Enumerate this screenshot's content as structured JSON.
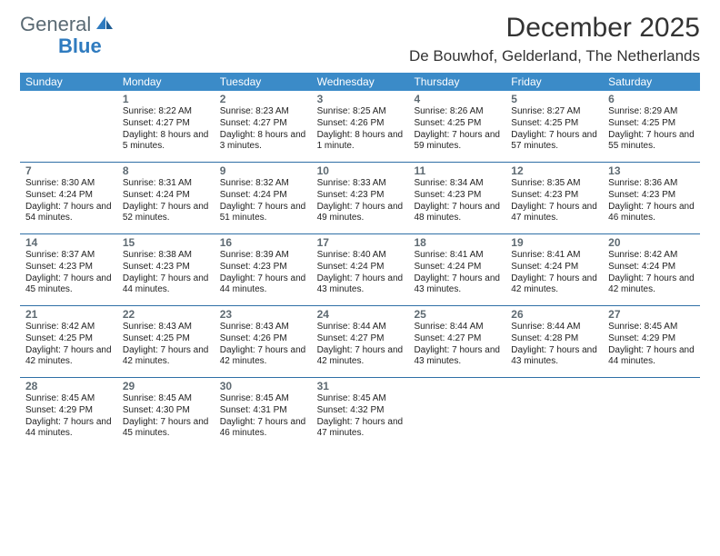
{
  "logo": {
    "text1": "General",
    "text2": "Blue"
  },
  "title": "December 2025",
  "location": "De Bouwhof, Gelderland, The Netherlands",
  "weekdays": [
    "Sunday",
    "Monday",
    "Tuesday",
    "Wednesday",
    "Thursday",
    "Friday",
    "Saturday"
  ],
  "colors": {
    "header_bg": "#3b8bc8",
    "header_text": "#ffffff",
    "rule": "#2f6fa6",
    "body_text": "#222222",
    "daynum": "#5e6a72",
    "logo_gray": "#5a6a74",
    "logo_blue": "#2f7bbf"
  },
  "days": [
    {
      "n": "",
      "sr": "",
      "ss": "",
      "dl": ""
    },
    {
      "n": "1",
      "sr": "Sunrise: 8:22 AM",
      "ss": "Sunset: 4:27 PM",
      "dl": "Daylight: 8 hours and 5 minutes."
    },
    {
      "n": "2",
      "sr": "Sunrise: 8:23 AM",
      "ss": "Sunset: 4:27 PM",
      "dl": "Daylight: 8 hours and 3 minutes."
    },
    {
      "n": "3",
      "sr": "Sunrise: 8:25 AM",
      "ss": "Sunset: 4:26 PM",
      "dl": "Daylight: 8 hours and 1 minute."
    },
    {
      "n": "4",
      "sr": "Sunrise: 8:26 AM",
      "ss": "Sunset: 4:25 PM",
      "dl": "Daylight: 7 hours and 59 minutes."
    },
    {
      "n": "5",
      "sr": "Sunrise: 8:27 AM",
      "ss": "Sunset: 4:25 PM",
      "dl": "Daylight: 7 hours and 57 minutes."
    },
    {
      "n": "6",
      "sr": "Sunrise: 8:29 AM",
      "ss": "Sunset: 4:25 PM",
      "dl": "Daylight: 7 hours and 55 minutes."
    },
    {
      "n": "7",
      "sr": "Sunrise: 8:30 AM",
      "ss": "Sunset: 4:24 PM",
      "dl": "Daylight: 7 hours and 54 minutes."
    },
    {
      "n": "8",
      "sr": "Sunrise: 8:31 AM",
      "ss": "Sunset: 4:24 PM",
      "dl": "Daylight: 7 hours and 52 minutes."
    },
    {
      "n": "9",
      "sr": "Sunrise: 8:32 AM",
      "ss": "Sunset: 4:24 PM",
      "dl": "Daylight: 7 hours and 51 minutes."
    },
    {
      "n": "10",
      "sr": "Sunrise: 8:33 AM",
      "ss": "Sunset: 4:23 PM",
      "dl": "Daylight: 7 hours and 49 minutes."
    },
    {
      "n": "11",
      "sr": "Sunrise: 8:34 AM",
      "ss": "Sunset: 4:23 PM",
      "dl": "Daylight: 7 hours and 48 minutes."
    },
    {
      "n": "12",
      "sr": "Sunrise: 8:35 AM",
      "ss": "Sunset: 4:23 PM",
      "dl": "Daylight: 7 hours and 47 minutes."
    },
    {
      "n": "13",
      "sr": "Sunrise: 8:36 AM",
      "ss": "Sunset: 4:23 PM",
      "dl": "Daylight: 7 hours and 46 minutes."
    },
    {
      "n": "14",
      "sr": "Sunrise: 8:37 AM",
      "ss": "Sunset: 4:23 PM",
      "dl": "Daylight: 7 hours and 45 minutes."
    },
    {
      "n": "15",
      "sr": "Sunrise: 8:38 AM",
      "ss": "Sunset: 4:23 PM",
      "dl": "Daylight: 7 hours and 44 minutes."
    },
    {
      "n": "16",
      "sr": "Sunrise: 8:39 AM",
      "ss": "Sunset: 4:23 PM",
      "dl": "Daylight: 7 hours and 44 minutes."
    },
    {
      "n": "17",
      "sr": "Sunrise: 8:40 AM",
      "ss": "Sunset: 4:24 PM",
      "dl": "Daylight: 7 hours and 43 minutes."
    },
    {
      "n": "18",
      "sr": "Sunrise: 8:41 AM",
      "ss": "Sunset: 4:24 PM",
      "dl": "Daylight: 7 hours and 43 minutes."
    },
    {
      "n": "19",
      "sr": "Sunrise: 8:41 AM",
      "ss": "Sunset: 4:24 PM",
      "dl": "Daylight: 7 hours and 42 minutes."
    },
    {
      "n": "20",
      "sr": "Sunrise: 8:42 AM",
      "ss": "Sunset: 4:24 PM",
      "dl": "Daylight: 7 hours and 42 minutes."
    },
    {
      "n": "21",
      "sr": "Sunrise: 8:42 AM",
      "ss": "Sunset: 4:25 PM",
      "dl": "Daylight: 7 hours and 42 minutes."
    },
    {
      "n": "22",
      "sr": "Sunrise: 8:43 AM",
      "ss": "Sunset: 4:25 PM",
      "dl": "Daylight: 7 hours and 42 minutes."
    },
    {
      "n": "23",
      "sr": "Sunrise: 8:43 AM",
      "ss": "Sunset: 4:26 PM",
      "dl": "Daylight: 7 hours and 42 minutes."
    },
    {
      "n": "24",
      "sr": "Sunrise: 8:44 AM",
      "ss": "Sunset: 4:27 PM",
      "dl": "Daylight: 7 hours and 42 minutes."
    },
    {
      "n": "25",
      "sr": "Sunrise: 8:44 AM",
      "ss": "Sunset: 4:27 PM",
      "dl": "Daylight: 7 hours and 43 minutes."
    },
    {
      "n": "26",
      "sr": "Sunrise: 8:44 AM",
      "ss": "Sunset: 4:28 PM",
      "dl": "Daylight: 7 hours and 43 minutes."
    },
    {
      "n": "27",
      "sr": "Sunrise: 8:45 AM",
      "ss": "Sunset: 4:29 PM",
      "dl": "Daylight: 7 hours and 44 minutes."
    },
    {
      "n": "28",
      "sr": "Sunrise: 8:45 AM",
      "ss": "Sunset: 4:29 PM",
      "dl": "Daylight: 7 hours and 44 minutes."
    },
    {
      "n": "29",
      "sr": "Sunrise: 8:45 AM",
      "ss": "Sunset: 4:30 PM",
      "dl": "Daylight: 7 hours and 45 minutes."
    },
    {
      "n": "30",
      "sr": "Sunrise: 8:45 AM",
      "ss": "Sunset: 4:31 PM",
      "dl": "Daylight: 7 hours and 46 minutes."
    },
    {
      "n": "31",
      "sr": "Sunrise: 8:45 AM",
      "ss": "Sunset: 4:32 PM",
      "dl": "Daylight: 7 hours and 47 minutes."
    },
    {
      "n": "",
      "sr": "",
      "ss": "",
      "dl": ""
    },
    {
      "n": "",
      "sr": "",
      "ss": "",
      "dl": ""
    },
    {
      "n": "",
      "sr": "",
      "ss": "",
      "dl": ""
    }
  ]
}
